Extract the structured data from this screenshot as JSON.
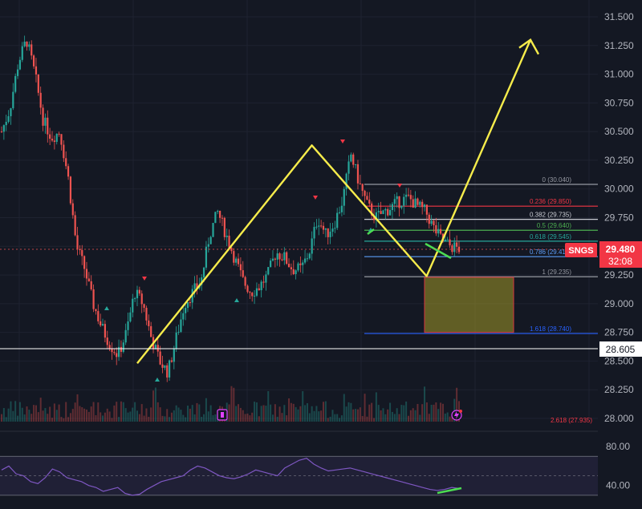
{
  "chart_data": [
    {
      "type": "candlestick",
      "title": "",
      "symbol": "SNGS",
      "last_price": "29.480",
      "countdown": "32:08",
      "horizontal_level": "28.605",
      "ylim": [
        28.0,
        31.65
      ],
      "y_ticks": [
        "31.500",
        "31.250",
        "31.000",
        "30.750",
        "30.500",
        "30.250",
        "30.000",
        "29.750",
        "29.500",
        "29.250",
        "29.000",
        "28.750",
        "28.500",
        "28.250",
        "28.000"
      ],
      "price_path": [
        30.5,
        30.7,
        31.1,
        31.3,
        31.0,
        30.6,
        30.45,
        30.5,
        30.1,
        29.5,
        29.3,
        29.0,
        28.8,
        28.65,
        28.55,
        28.75,
        29.1,
        29.0,
        28.7,
        28.5,
        28.4,
        28.7,
        29.0,
        29.1,
        29.2,
        29.6,
        29.8,
        29.6,
        29.4,
        29.2,
        29.1,
        29.15,
        29.25,
        29.45,
        29.4,
        29.3,
        29.3,
        29.45,
        29.75,
        29.6,
        29.7,
        29.9,
        30.3,
        30.05,
        29.85,
        29.75,
        29.8,
        29.85,
        29.9,
        29.92,
        29.85,
        29.8,
        29.65,
        29.55,
        29.5,
        29.48
      ],
      "fibonacci": [
        {
          "label": "0 (30.040)",
          "level": 30.04,
          "color": "#9598a1"
        },
        {
          "label": "0.236 (29.850)",
          "level": 29.85,
          "color": "#f23645"
        },
        {
          "label": "0.382 (29.735)",
          "level": 29.735,
          "color": "#c9ccd3"
        },
        {
          "label": "0.5 (29.640)",
          "level": 29.64,
          "color": "#4caf50"
        },
        {
          "label": "0.618 (29.545)",
          "level": 29.545,
          "color": "#26a69a"
        },
        {
          "label": "0.786 (29.410)",
          "level": 29.41,
          "color": "#5b9cf6"
        },
        {
          "label": "1 (29.235)",
          "level": 29.235,
          "color": "#9598a1"
        },
        {
          "label": "1.618 (28.740)",
          "level": 28.74,
          "color": "#2962ff"
        },
        {
          "label": "2.618 (27.935)",
          "level": 27.935,
          "color": "#f23645"
        }
      ],
      "projection_path": [
        {
          "x_frac": 0.0,
          "price": 28.48
        },
        {
          "x_frac": 0.444,
          "price": 30.38
        },
        {
          "x_frac": 0.736,
          "price": 29.24
        },
        {
          "x_frac": 1.0,
          "price": 31.3
        }
      ],
      "target_zone": {
        "top": 29.23,
        "bottom": 28.75
      },
      "rsi": {
        "y_ticks": [
          "80.00",
          "40.00"
        ],
        "upper": 70,
        "mid": 50,
        "lower": 30,
        "values": [
          56,
          60,
          52,
          50,
          44,
          42,
          48,
          57,
          54,
          48,
          46,
          44,
          40,
          38,
          34,
          36,
          38,
          32,
          30,
          31,
          36,
          40,
          44,
          46,
          48,
          50,
          56,
          60,
          58,
          54,
          50,
          48,
          47,
          49,
          52,
          56,
          54,
          52,
          50,
          58,
          62,
          66,
          68,
          62,
          58,
          55,
          56,
          57,
          58,
          56,
          54,
          52,
          50,
          48,
          46,
          44,
          42,
          40,
          38,
          36,
          35,
          36,
          38,
          37
        ]
      },
      "colors": {
        "up": "#26a69a",
        "down": "#ef5350",
        "projection": "#f6ec4b",
        "rsi_line": "#7e57c2",
        "axis_bg": "#141823"
      }
    }
  ]
}
